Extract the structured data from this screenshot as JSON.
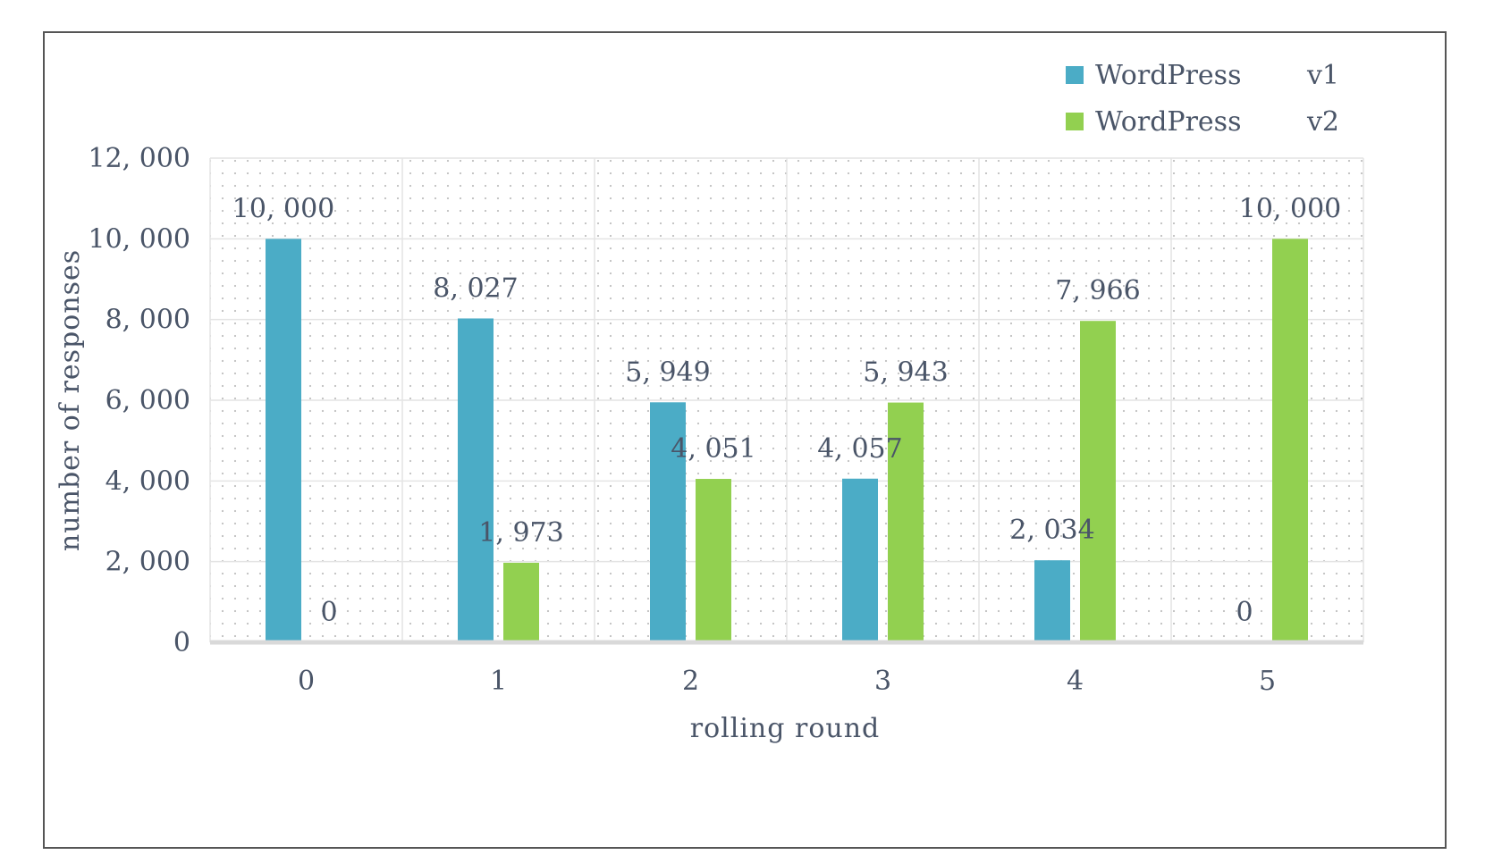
{
  "colors": {
    "v1": "#4bacc6",
    "v2": "#92d050",
    "grid": "#e4e4e4",
    "axis": "#d9d9d9",
    "dots": "#bfbfbf"
  },
  "chart_data": {
    "type": "bar",
    "xlabel": "rolling round",
    "ylabel": "number of responses",
    "categories": [
      "0",
      "1",
      "2",
      "3",
      "4",
      "5"
    ],
    "ylim": [
      0,
      12000
    ],
    "yticks": [
      "0",
      "2, 000",
      "4, 000",
      "6, 000",
      "8, 000",
      "10, 000",
      "12, 000"
    ],
    "ytick_values": [
      0,
      2000,
      4000,
      6000,
      8000,
      10000,
      12000
    ],
    "legend_position": "top-right",
    "grid": true,
    "series": [
      {
        "name": "WordPress v1",
        "legend_left": "WordPress",
        "legend_right": "v1",
        "color_key": "v1",
        "values": [
          10000,
          8027,
          5949,
          4057,
          2034,
          0
        ],
        "labels": [
          "10, 000",
          "8, 027",
          "5, 949",
          "4, 057",
          "2, 034",
          "0"
        ]
      },
      {
        "name": "WordPress v2",
        "legend_left": "WordPress",
        "legend_right": "v2",
        "color_key": "v2",
        "values": [
          0,
          1973,
          4051,
          5943,
          7966,
          10000
        ],
        "labels": [
          "0",
          "1, 973",
          "4, 051",
          "5, 943",
          "7, 966",
          "10, 000"
        ]
      }
    ]
  }
}
